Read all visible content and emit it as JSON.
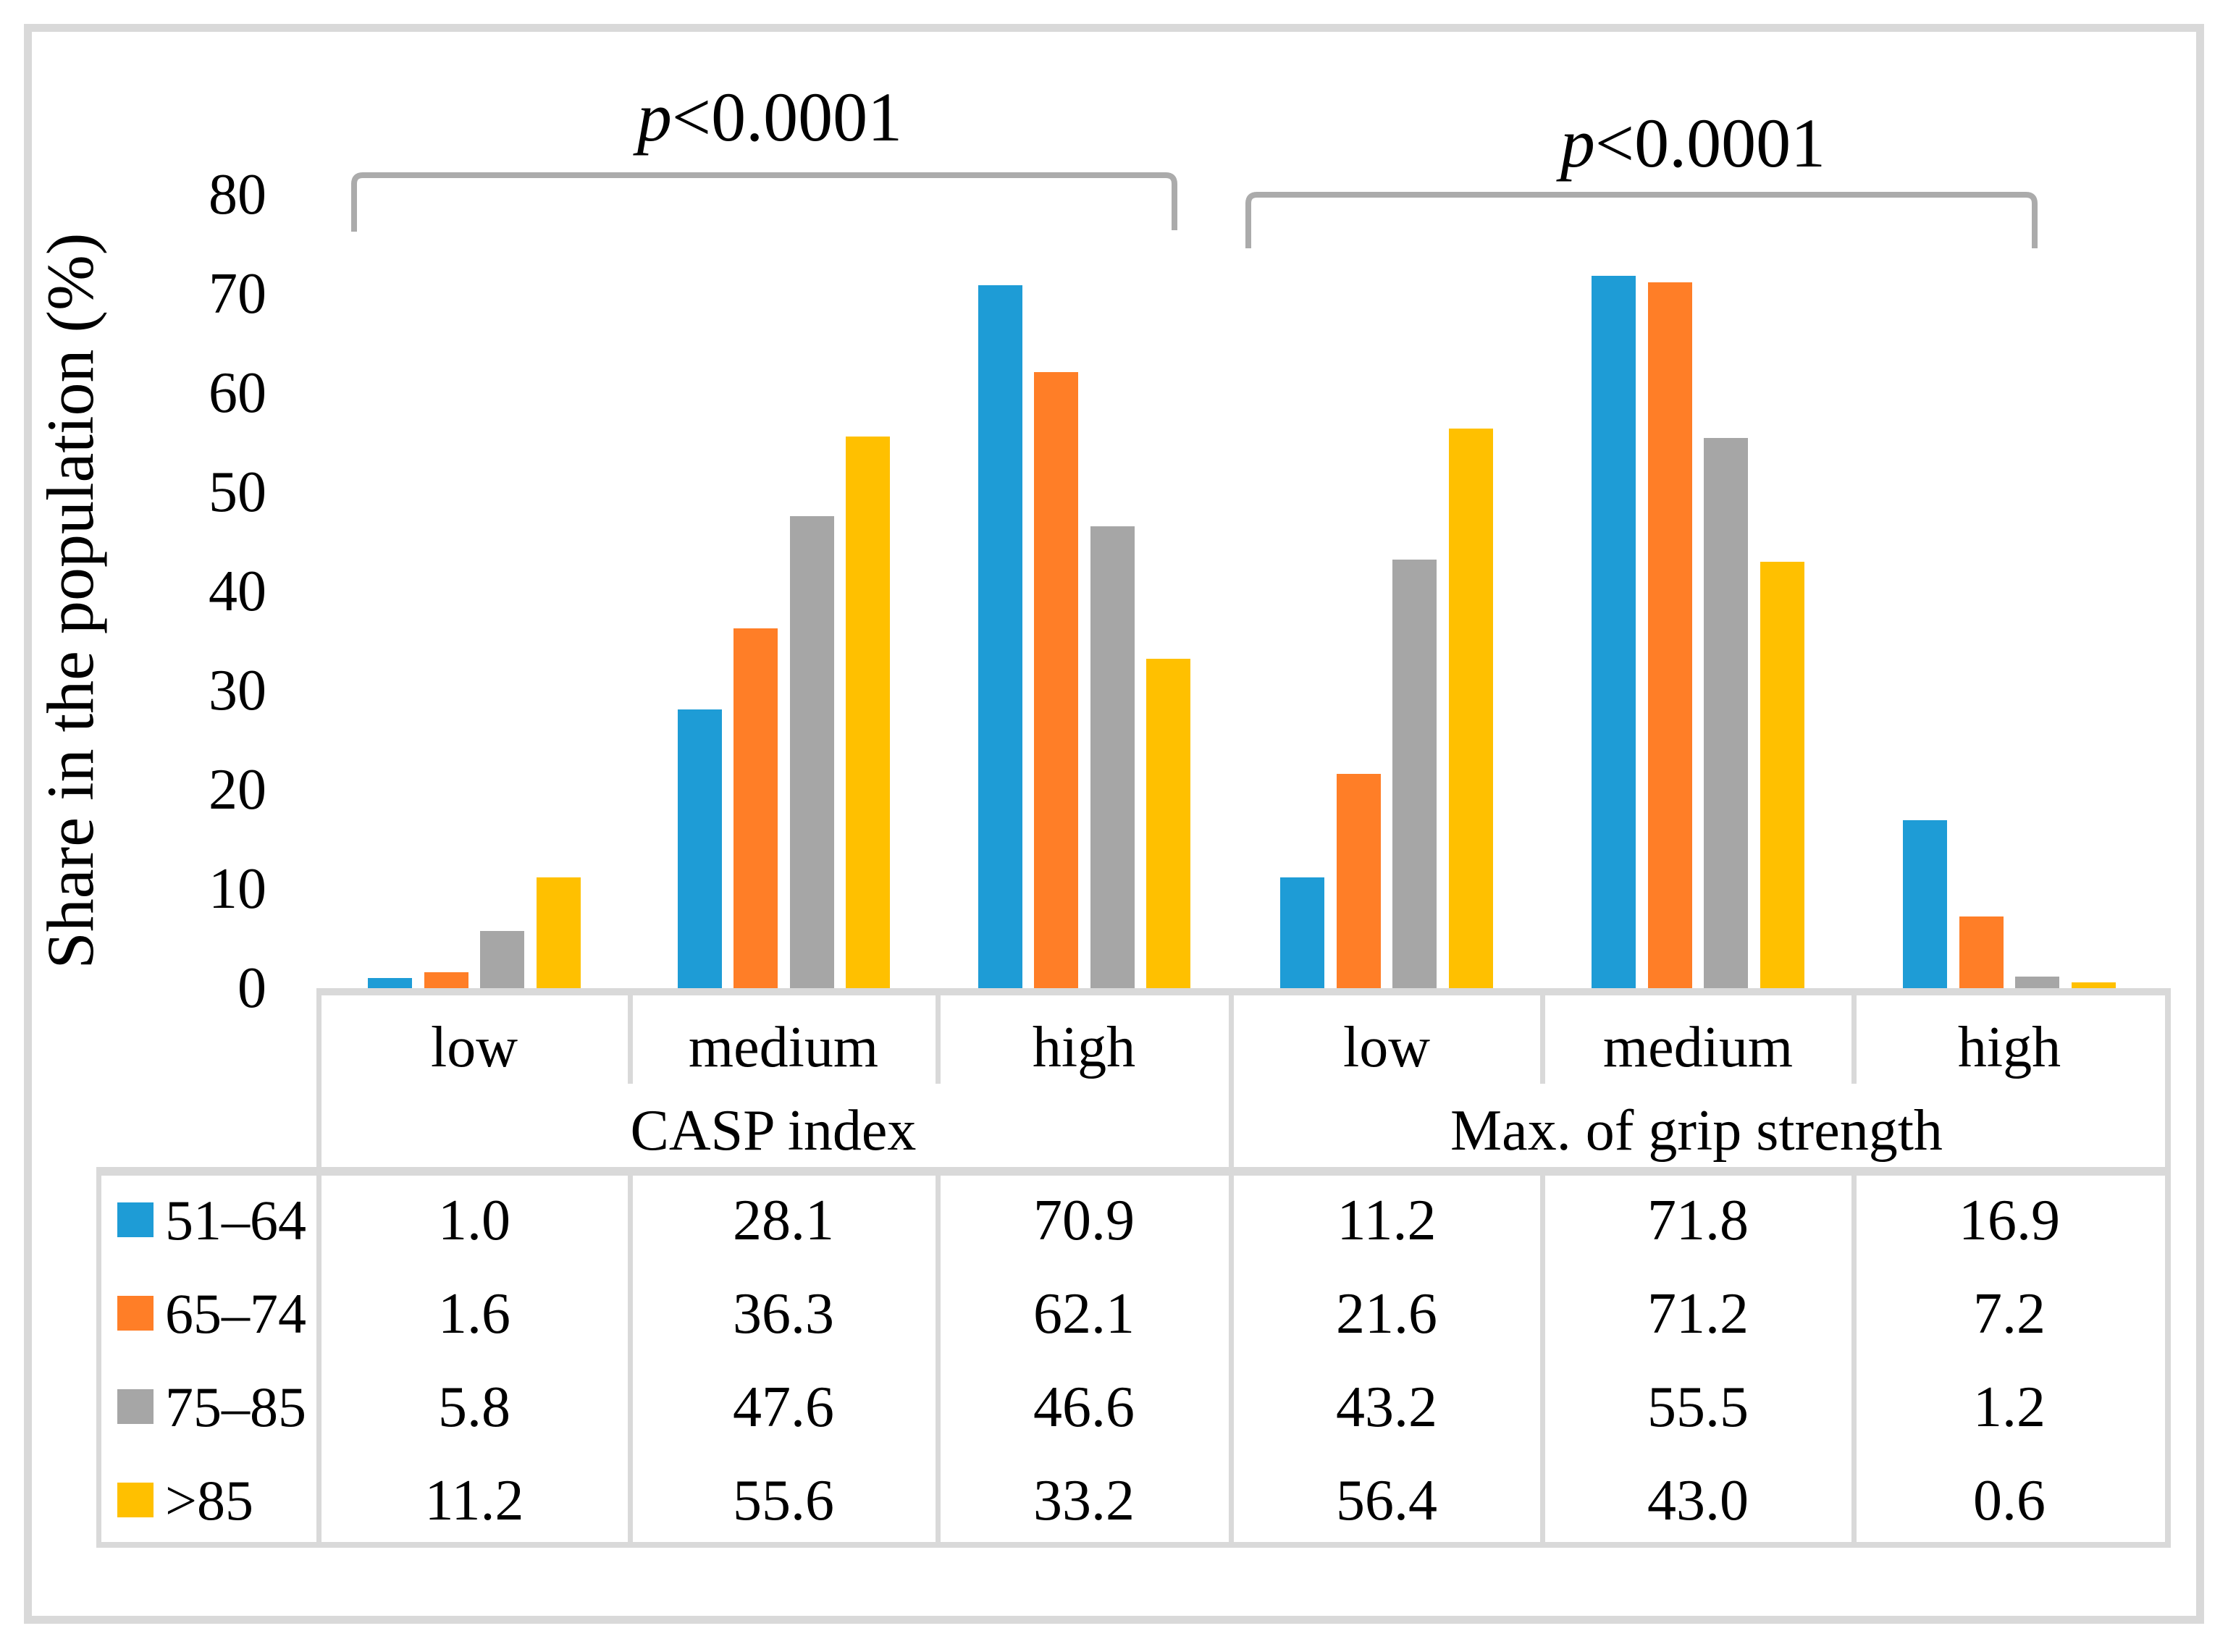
{
  "chart_data": {
    "type": "bar",
    "ylabel": "Share in the population (%)",
    "ylim": [
      0,
      80
    ],
    "yticks": [
      0,
      10,
      20,
      30,
      40,
      50,
      60,
      70,
      80
    ],
    "grid": false,
    "legend_position": "table-left-keys",
    "groups": [
      {
        "label": "CASP index",
        "categories": [
          "low",
          "medium",
          "high"
        ]
      },
      {
        "label": "Max. of grip strength",
        "categories": [
          "low",
          "medium",
          "high"
        ]
      }
    ],
    "series": [
      {
        "name": "51–64",
        "color": "#1E9CD6",
        "values": [
          1.0,
          28.1,
          70.9,
          11.2,
          71.8,
          16.9
        ],
        "display": [
          "1.0",
          "28.1",
          "70.9",
          "11.2",
          "71.8",
          "16.9"
        ]
      },
      {
        "name": "65–74",
        "color": "#FF7E27",
        "values": [
          1.6,
          36.3,
          62.1,
          21.6,
          71.2,
          7.2
        ],
        "display": [
          "1.6",
          "36.3",
          "62.1",
          "21.6",
          "71.2",
          "7.2"
        ]
      },
      {
        "name": "75–85",
        "color": "#A6A6A6",
        "values": [
          5.8,
          47.6,
          46.6,
          43.2,
          55.5,
          1.2
        ],
        "display": [
          "5.8",
          "47.6",
          "46.6",
          "43.2",
          "55.5",
          "1.2"
        ]
      },
      {
        "name": ">85",
        "color": "#FFC000",
        "values": [
          11.2,
          55.6,
          33.2,
          56.4,
          43.0,
          0.6
        ],
        "display": [
          "11.2",
          "55.6",
          "33.2",
          "56.4",
          "43.0",
          "0.6"
        ]
      }
    ],
    "annotations": [
      {
        "full": "p<0.0001",
        "p_italic": "p",
        "rest": "<0.0001",
        "span": "CASP index"
      },
      {
        "full": "p<0.0001",
        "p_italic": "p",
        "rest": "<0.0001",
        "span": "Max. of grip strength"
      }
    ]
  }
}
